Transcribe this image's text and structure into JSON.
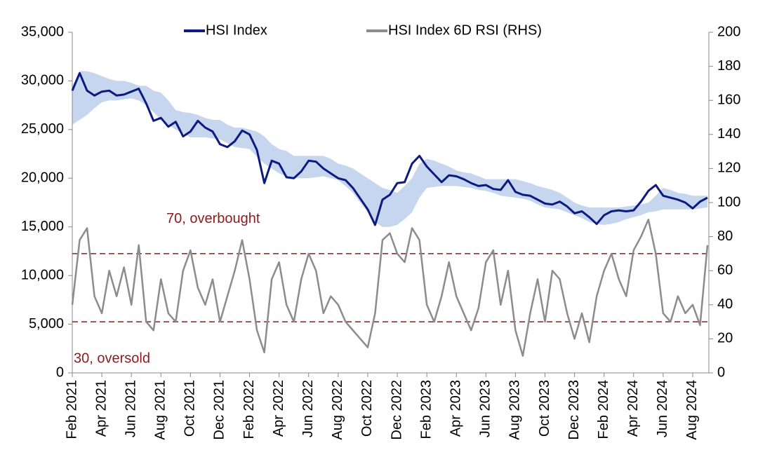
{
  "chart_data": {
    "type": "line",
    "categories": [
      "Feb 2021",
      null,
      null,
      null,
      "Apr 2021",
      null,
      null,
      null,
      "Jun 2021",
      null,
      null,
      null,
      "Aug 2021",
      null,
      null,
      null,
      "Oct 2021",
      null,
      null,
      null,
      "Dec 2021",
      null,
      null,
      null,
      "Feb 2022",
      null,
      null,
      null,
      "Apr 2022",
      null,
      null,
      null,
      "Jun 2022",
      null,
      null,
      null,
      "Aug 2022",
      null,
      null,
      null,
      "Oct 2022",
      null,
      null,
      null,
      "Dec 2022",
      null,
      null,
      null,
      "Feb 2023",
      null,
      null,
      null,
      "Apr 2023",
      null,
      null,
      null,
      "Jun 2023",
      null,
      null,
      null,
      "Aug 2023",
      null,
      null,
      null,
      "Oct 2023",
      null,
      null,
      null,
      "Dec 2023",
      null,
      null,
      null,
      "Feb 2024",
      null,
      null,
      null,
      "Apr 2024",
      null,
      null,
      null,
      "Jun 2024",
      null,
      null,
      null,
      "Aug 2024",
      null,
      null
    ],
    "series": [
      {
        "name": "HSI Index",
        "color": "#0d1a80",
        "values": [
          29000,
          30800,
          29000,
          28500,
          28900,
          29000,
          28500,
          28600,
          28900,
          29200,
          27700,
          25900,
          26200,
          25300,
          25800,
          24300,
          24800,
          25900,
          25200,
          24800,
          23500,
          23200,
          23800,
          24900,
          24500,
          22900,
          19500,
          21800,
          21500,
          20100,
          20000,
          20700,
          21800,
          21700,
          21000,
          20500,
          20000,
          19800,
          19000,
          17900,
          16800,
          15200,
          17800,
          18300,
          19500,
          19600,
          21500,
          22300,
          21200,
          20400,
          19600,
          20300,
          20200,
          19900,
          19500,
          19200,
          19300,
          18900,
          18800,
          19800,
          18600,
          18300,
          18200,
          17800,
          17400,
          17300,
          17600,
          17100,
          16400,
          16600,
          16000,
          15300,
          16200,
          16600,
          16700,
          16600,
          16700,
          17600,
          18700,
          19300,
          18200,
          18000,
          17800,
          17500,
          16900,
          17600,
          18000
        ]
      },
      {
        "name": "HSI Index 6D RSI (RHS)",
        "color": "#8c8c8c",
        "axis": "y2",
        "values": [
          40,
          78,
          85,
          45,
          35,
          60,
          45,
          62,
          40,
          75,
          30,
          25,
          55,
          35,
          30,
          60,
          72,
          50,
          40,
          55,
          30,
          45,
          60,
          78,
          55,
          25,
          12,
          55,
          65,
          40,
          30,
          55,
          70,
          60,
          35,
          45,
          40,
          30,
          25,
          20,
          15,
          35,
          78,
          82,
          70,
          65,
          85,
          78,
          40,
          30,
          45,
          65,
          45,
          35,
          25,
          38,
          65,
          72,
          40,
          60,
          25,
          10,
          35,
          55,
          30,
          60,
          55,
          35,
          20,
          35,
          18,
          45,
          60,
          70,
          55,
          45,
          72,
          80,
          90,
          70,
          35,
          30,
          45,
          35,
          40,
          28,
          75
        ]
      }
    ],
    "band": {
      "color": "#c6d6ee",
      "upper": [
        29500,
        31000,
        31000,
        30800,
        30500,
        30200,
        30000,
        30000,
        29800,
        29500,
        29500,
        29000,
        28800,
        28000,
        27000,
        26800,
        26700,
        26500,
        26200,
        26000,
        26000,
        25500,
        25200,
        25200,
        25000,
        24800,
        24300,
        23500,
        23000,
        22800,
        22300,
        22300,
        22300,
        22300,
        22300,
        22000,
        21500,
        21300,
        21000,
        20500,
        20000,
        19500,
        19000,
        18800,
        18500,
        19200,
        20000,
        21500,
        22000,
        21800,
        21500,
        21200,
        20800,
        20600,
        20500,
        20200,
        19900,
        19900,
        19900,
        19900,
        19900,
        19700,
        19500,
        19200,
        19000,
        18800,
        18500,
        18000,
        17500,
        17200,
        17000,
        17000,
        17000,
        17000,
        17000,
        17100,
        17200,
        17300,
        17500,
        18200,
        19000,
        18800,
        18500,
        18400,
        18200,
        18200,
        18200
      ],
      "lower": [
        25500,
        26000,
        26500,
        27200,
        27800,
        28000,
        28000,
        28100,
        28200,
        28000,
        27500,
        26800,
        26000,
        25500,
        25000,
        24600,
        24200,
        24200,
        24200,
        24100,
        24000,
        23600,
        23200,
        23100,
        23000,
        22200,
        21500,
        21000,
        20500,
        20200,
        20000,
        20000,
        20000,
        20100,
        20200,
        20000,
        19800,
        19200,
        18500,
        17500,
        16500,
        15500,
        15000,
        15000,
        15200,
        15800,
        16500,
        18000,
        19000,
        19100,
        19200,
        19200,
        19200,
        19100,
        19000,
        18800,
        18700,
        18500,
        18200,
        18100,
        18000,
        17900,
        17700,
        17300,
        17000,
        16900,
        16800,
        16500,
        16200,
        15900,
        15500,
        15300,
        15200,
        15300,
        15500,
        15800,
        16000,
        16200,
        16500,
        16600,
        16800,
        16800,
        16800,
        16800,
        16800,
        16900,
        17000
      ]
    },
    "hlines": [
      {
        "value": 70,
        "axis": "y2",
        "label": "70, overbought",
        "color": "#8b1c1c"
      },
      {
        "value": 30,
        "axis": "y2",
        "label": "30, oversold",
        "color": "#8b1c1c"
      }
    ],
    "ylim": [
      0,
      35000
    ],
    "yticks": [
      0,
      {
        "value": 5000,
        "label": "5,000"
      },
      {
        "value": 10000,
        "label": "10,000"
      },
      {
        "value": 15000,
        "label": "15,000"
      },
      {
        "value": 20000,
        "label": "20,000"
      },
      {
        "value": 25000,
        "label": "25,000"
      },
      {
        "value": 30000,
        "label": "30,000"
      },
      {
        "value": 35000,
        "label": "35,000"
      }
    ],
    "y2lim": [
      0,
      200
    ],
    "y2ticks": [
      0,
      20,
      40,
      60,
      80,
      100,
      120,
      140,
      160,
      180,
      200
    ],
    "legend": "top"
  }
}
